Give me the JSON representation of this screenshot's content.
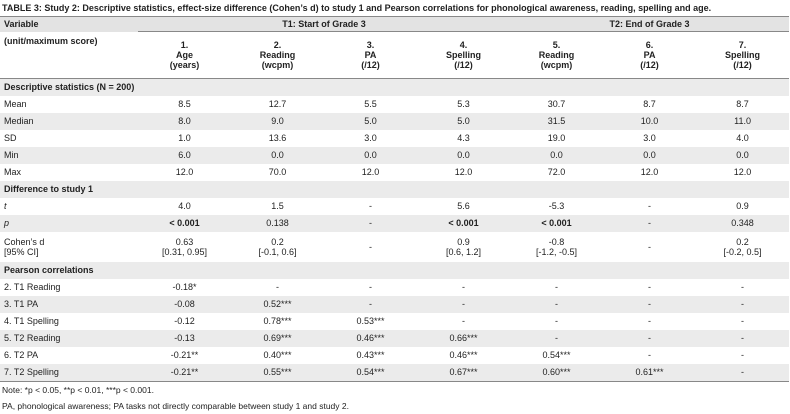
{
  "title": "TABLE 3: Study 2: Descriptive statistics, effect-size difference (Cohen’s d) to study 1 and Pearson correlations for phonological awareness, reading, spelling and age.",
  "header": {
    "variable": "Variable",
    "unit": "(unit/maximum score)",
    "groups": [
      "T1: Start of Grade 3",
      "T2: End of Grade 3"
    ],
    "columns": [
      [
        "1.",
        "Age",
        "(years)"
      ],
      [
        "2.",
        "Reading",
        "(wcpm)"
      ],
      [
        "3.",
        "PA",
        "(/12)"
      ],
      [
        "4.",
        "Spelling",
        "(/12)"
      ],
      [
        "5.",
        "Reading",
        "(wcpm)"
      ],
      [
        "6.",
        "PA",
        "(/12)"
      ],
      [
        "7.",
        "Spelling",
        "(/12)"
      ]
    ]
  },
  "sections": [
    {
      "title": "Descriptive statistics (N = 200)",
      "rows": [
        {
          "label": "Mean",
          "cells": [
            "8.5",
            "12.7",
            "5.5",
            "5.3",
            "30.7",
            "8.7",
            "8.7"
          ]
        },
        {
          "label": "Median",
          "cells": [
            "8.0",
            "9.0",
            "5.0",
            "5.0",
            "31.5",
            "10.0",
            "11.0"
          ]
        },
        {
          "label": "SD",
          "cells": [
            "1.0",
            "13.6",
            "3.0",
            "4.3",
            "19.0",
            "3.0",
            "4.0"
          ]
        },
        {
          "label": "Min",
          "cells": [
            "6.0",
            "0.0",
            "0.0",
            "0.0",
            "0.0",
            "0.0",
            "0.0"
          ]
        },
        {
          "label": "Max",
          "cells": [
            "12.0",
            "70.0",
            "12.0",
            "12.0",
            "72.0",
            "12.0",
            "12.0"
          ]
        }
      ]
    },
    {
      "title": "Difference to study 1",
      "rows": [
        {
          "label": "t",
          "cells": [
            "4.0",
            "1.5",
            "-",
            "5.6",
            "-5.3",
            "-",
            "0.9"
          ]
        },
        {
          "label": "p",
          "cells": [
            "< 0.001",
            "0.138",
            "-",
            "< 0.001",
            "< 0.001",
            "-",
            "0.348"
          ]
        },
        {
          "label": [
            "Cohen’s d",
            "[95% CI]"
          ],
          "cells": [
            [
              "0.63",
              "[0.31, 0.95]"
            ],
            [
              "0.2",
              "[-0.1, 0.6]"
            ],
            [
              "-"
            ],
            [
              "0.9",
              "[0.6, 1.2]"
            ],
            [
              "-0.8",
              "[-1.2, -0.5]"
            ],
            [
              "-"
            ],
            [
              "0.2",
              "[-0.2, 0.5]"
            ]
          ]
        }
      ]
    },
    {
      "title": "Pearson correlations",
      "rows": [
        {
          "label": "2.  T1 Reading",
          "cells": [
            "-0.18*",
            "-",
            "-",
            "-",
            "-",
            "-",
            "-"
          ]
        },
        {
          "label": "3.  T1 PA",
          "cells": [
            "-0.08",
            "0.52***",
            "-",
            "-",
            "-",
            "-",
            "-"
          ]
        },
        {
          "label": "4.  T1 Spelling",
          "cells": [
            "-0.12",
            "0.78***",
            "0.53***",
            "-",
            "-",
            "-",
            "-"
          ]
        },
        {
          "label": "5.  T2 Reading",
          "cells": [
            "-0.13",
            "0.69***",
            "0.46***",
            "0.66***",
            "-",
            "-",
            "-"
          ]
        },
        {
          "label": "6.  T2 PA",
          "cells": [
            "-0.21**",
            "0.40***",
            "0.43***",
            "0.46***",
            "0.54***",
            "-",
            "-"
          ]
        },
        {
          "label": "7.  T2 Spelling",
          "cells": [
            "-0.21**",
            "0.55***",
            "0.54***",
            "0.67***",
            "0.60***",
            "0.61***",
            "-"
          ]
        }
      ]
    }
  ],
  "notes": [
    "Note: *p < 0.05, **p < 0.01, ***p < 0.001.",
    "PA, phonological awareness; PA tasks not directly comparable between study 1 and study 2."
  ]
}
